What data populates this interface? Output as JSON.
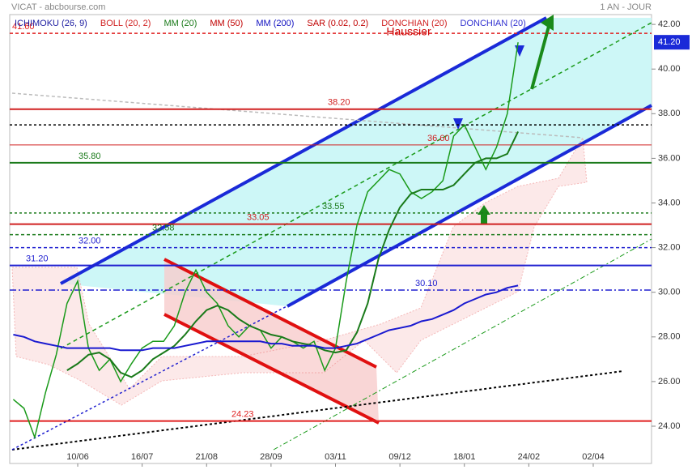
{
  "chart_data": {
    "type": "line",
    "title": "VICAT - abcbourse.com",
    "period": "1 AN - JOUR",
    "annotation": "Haussier",
    "last_price": {
      "value": 41.2,
      "label": "41.20"
    },
    "legend": [
      {
        "name": "ICHIMOKU (26, 9)",
        "color": "#1a1aa0"
      },
      {
        "name": "BOLL (20, 2)",
        "color": "#d02020"
      },
      {
        "name": "MM (20)",
        "color": "#1a7a1a"
      },
      {
        "name": "MM (50)",
        "color": "#c00000"
      },
      {
        "name": "MM (200)",
        "color": "#1010c0"
      },
      {
        "name": "SAR (0.02, 0.2)",
        "color": "#c00000"
      },
      {
        "name": "DONCHIAN (20)",
        "color": "#d02020"
      },
      {
        "name": "DONCHIAN (20)",
        "color": "#3030d0"
      }
    ],
    "categories": [
      null,
      null,
      null,
      null,
      null,
      null,
      "10/06",
      null,
      null,
      null,
      null,
      null,
      "16/07",
      null,
      null,
      null,
      null,
      null,
      "21/08",
      null,
      null,
      null,
      null,
      null,
      "28/09",
      null,
      null,
      null,
      null,
      null,
      "03/11",
      null,
      null,
      null,
      null,
      null,
      "09/12",
      null,
      null,
      null,
      null,
      null,
      "18/01",
      null,
      null,
      null,
      null,
      null,
      "24/02",
      null,
      null,
      null,
      null,
      null,
      "02/04",
      null,
      null,
      null,
      null,
      null
    ],
    "series": [
      {
        "color": "#1a9a1a",
        "values": [
          25.2,
          24.8,
          23.5,
          25.5,
          27.2,
          29.5,
          30.5,
          27.5,
          26.5,
          27.0,
          26.0,
          26.8,
          27.5,
          27.8,
          27.8,
          28.5,
          30.0,
          31.0,
          30.0,
          29.5,
          28.5,
          28.0,
          28.5,
          28.3,
          27.5,
          28.0,
          27.8,
          27.5,
          27.8,
          26.5,
          27.5,
          30.5,
          33.0,
          34.5,
          35.0,
          35.5,
          35.3,
          34.5,
          34.2,
          34.5,
          35.0,
          37.0,
          37.5,
          36.5,
          35.5,
          36.5,
          38.0,
          41.2,
          null,
          null,
          null,
          null,
          null,
          null,
          null,
          null,
          null,
          null,
          null,
          null
        ]
      },
      {
        "color": "#1a7a1a",
        "values": [
          null,
          null,
          null,
          null,
          null,
          26.5,
          26.8,
          27.2,
          27.3,
          27.0,
          26.4,
          26.2,
          26.5,
          27.0,
          27.3,
          27.6,
          28.1,
          28.7,
          29.2,
          29.4,
          29.2,
          28.8,
          28.5,
          28.3,
          28.1,
          28.0,
          27.8,
          27.7,
          27.6,
          27.4,
          27.3,
          27.4,
          28.2,
          29.5,
          31.5,
          32.8,
          33.8,
          34.4,
          34.6,
          34.6,
          34.6,
          34.8,
          35.3,
          35.8,
          36.0,
          36.0,
          36.2,
          37.2,
          null,
          null,
          null,
          null,
          null,
          null,
          null,
          null,
          null,
          null,
          null,
          null
        ]
      },
      {
        "color": "#1a1ad0",
        "values": [
          28.1,
          28.0,
          27.8,
          27.7,
          27.6,
          27.5,
          27.5,
          27.5,
          27.5,
          27.5,
          27.4,
          27.4,
          27.4,
          27.5,
          27.5,
          27.5,
          27.6,
          27.7,
          27.8,
          27.8,
          27.8,
          27.8,
          27.8,
          27.8,
          27.7,
          27.7,
          27.6,
          27.6,
          27.6,
          27.5,
          27.5,
          27.6,
          27.7,
          27.9,
          28.1,
          28.3,
          28.4,
          28.5,
          28.7,
          28.8,
          29.0,
          29.2,
          29.5,
          29.7,
          29.9,
          30.0,
          30.2,
          30.3,
          null,
          null,
          null,
          null,
          null,
          null,
          null,
          null,
          null,
          null,
          null,
          null
        ]
      }
    ],
    "levels": [
      {
        "value": 41.6,
        "label": "41.60",
        "color": "#e02020",
        "style": "dashed"
      },
      {
        "value": 38.2,
        "label": "38.20",
        "color": "#d02020",
        "style": "solid"
      },
      {
        "value": 37.5,
        "color": "#000000",
        "style": "dotted"
      },
      {
        "value": 36.6,
        "label": "36.60",
        "color": "#d02020",
        "style": "thin"
      },
      {
        "value": 35.8,
        "label": "35.80",
        "color": "#1a7a1a",
        "style": "solid"
      },
      {
        "value": 33.55,
        "label": "33.55",
        "color": "#1a7a1a",
        "style": "dotted"
      },
      {
        "value": 33.05,
        "label": "33.05",
        "color": "#d02020",
        "style": "solid"
      },
      {
        "value": 32.58,
        "label": "32.58",
        "color": "#1a7a1a",
        "style": "dashed"
      },
      {
        "value": 32,
        "label": "32.00",
        "color": "#2020d0",
        "style": "dashed"
      },
      {
        "value": 31.2,
        "label": "31.20",
        "color": "#2020d0",
        "style": "solid"
      },
      {
        "value": 30.1,
        "label": "30.10",
        "color": "#2020d0",
        "style": "dashdot"
      },
      {
        "value": 24.23,
        "label": "24.23",
        "color": "#e02020",
        "style": "solid"
      }
    ],
    "ylim": [
      22.33,
      42.44
    ],
    "yticks": [
      {
        "value": 24,
        "label": "24.00"
      },
      {
        "value": 26,
        "label": "26.00"
      },
      {
        "value": 28,
        "label": "28.00"
      },
      {
        "value": 30,
        "label": "30.00"
      },
      {
        "value": 32,
        "label": "32.00"
      },
      {
        "value": 34,
        "label": "34.00"
      },
      {
        "value": 36,
        "label": "36.00"
      },
      {
        "value": 38,
        "label": "38.00"
      },
      {
        "value": 40,
        "label": "40.00"
      },
      {
        "value": 42,
        "label": "42.00"
      }
    ]
  }
}
